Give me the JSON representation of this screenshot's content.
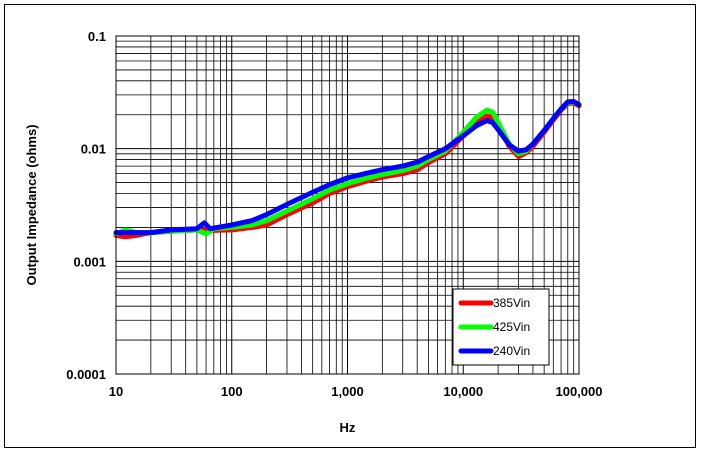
{
  "chart_data": {
    "type": "line",
    "title": "",
    "xlabel": "Hz",
    "ylabel": "Output Impedance (ohms)",
    "x_scale": "log",
    "y_scale": "log",
    "xlim": [
      10,
      100000
    ],
    "ylim": [
      0.0001,
      0.1
    ],
    "grid": true,
    "legend_position": "bottom-right",
    "x_ticks": [
      {
        "value": 10,
        "label": "10"
      },
      {
        "value": 100,
        "label": "100"
      },
      {
        "value": 1000,
        "label": "1,000"
      },
      {
        "value": 10000,
        "label": "10,000"
      },
      {
        "value": 100000,
        "label": "100,000"
      }
    ],
    "y_ticks": [
      {
        "value": 0.1,
        "label": "0.1"
      },
      {
        "value": 0.01,
        "label": "0.01"
      },
      {
        "value": 0.001,
        "label": "0.001"
      },
      {
        "value": 0.0001,
        "label": "0.0001"
      }
    ],
    "series": [
      {
        "name": "385Vin",
        "color": "#ff0000",
        "points": [
          [
            10,
            0.0017
          ],
          [
            12,
            0.00165
          ],
          [
            15,
            0.0017
          ],
          [
            20,
            0.0018
          ],
          [
            30,
            0.00185
          ],
          [
            50,
            0.0019
          ],
          [
            60,
            0.0019
          ],
          [
            70,
            0.00188
          ],
          [
            100,
            0.0019
          ],
          [
            150,
            0.002
          ],
          [
            200,
            0.0021
          ],
          [
            300,
            0.0026
          ],
          [
            500,
            0.0033
          ],
          [
            700,
            0.004
          ],
          [
            1000,
            0.0046
          ],
          [
            1500,
            0.0052
          ],
          [
            2000,
            0.0056
          ],
          [
            3000,
            0.006
          ],
          [
            4000,
            0.0065
          ],
          [
            5000,
            0.0075
          ],
          [
            7000,
            0.009
          ],
          [
            10000,
            0.013
          ],
          [
            13000,
            0.017
          ],
          [
            16000,
            0.0195
          ],
          [
            18000,
            0.019
          ],
          [
            20000,
            0.016
          ],
          [
            25000,
            0.0105
          ],
          [
            30000,
            0.0085
          ],
          [
            35000,
            0.0092
          ],
          [
            40000,
            0.0105
          ],
          [
            50000,
            0.014
          ],
          [
            60000,
            0.018
          ],
          [
            70000,
            0.022
          ],
          [
            80000,
            0.025
          ],
          [
            90000,
            0.0255
          ],
          [
            100000,
            0.024
          ]
        ]
      },
      {
        "name": "425Vin",
        "color": "#00ff00",
        "points": [
          [
            10,
            0.00175
          ],
          [
            12,
            0.0019
          ],
          [
            15,
            0.0018
          ],
          [
            20,
            0.0018
          ],
          [
            30,
            0.00185
          ],
          [
            50,
            0.0019
          ],
          [
            60,
            0.00175
          ],
          [
            70,
            0.00195
          ],
          [
            100,
            0.002
          ],
          [
            150,
            0.0021
          ],
          [
            200,
            0.0023
          ],
          [
            300,
            0.0028
          ],
          [
            500,
            0.0036
          ],
          [
            700,
            0.0043
          ],
          [
            1000,
            0.0049
          ],
          [
            1500,
            0.0055
          ],
          [
            2000,
            0.0059
          ],
          [
            3000,
            0.0064
          ],
          [
            4000,
            0.007
          ],
          [
            5000,
            0.008
          ],
          [
            7000,
            0.0095
          ],
          [
            10000,
            0.014
          ],
          [
            13000,
            0.019
          ],
          [
            16000,
            0.022
          ],
          [
            18000,
            0.021
          ],
          [
            20000,
            0.017
          ],
          [
            25000,
            0.011
          ],
          [
            30000,
            0.009
          ],
          [
            35000,
            0.0095
          ],
          [
            40000,
            0.011
          ],
          [
            50000,
            0.0145
          ],
          [
            60000,
            0.0185
          ],
          [
            70000,
            0.0225
          ],
          [
            80000,
            0.0255
          ],
          [
            90000,
            0.026
          ],
          [
            100000,
            0.0245
          ]
        ]
      },
      {
        "name": "240Vin",
        "color": "#0000ff",
        "points": [
          [
            10,
            0.0018
          ],
          [
            12,
            0.0018
          ],
          [
            15,
            0.0018
          ],
          [
            20,
            0.0018
          ],
          [
            30,
            0.0019
          ],
          [
            50,
            0.00195
          ],
          [
            58,
            0.0022
          ],
          [
            65,
            0.00195
          ],
          [
            100,
            0.0021
          ],
          [
            150,
            0.0023
          ],
          [
            200,
            0.0026
          ],
          [
            300,
            0.0032
          ],
          [
            500,
            0.0041
          ],
          [
            700,
            0.0048
          ],
          [
            1000,
            0.0055
          ],
          [
            1500,
            0.0061
          ],
          [
            2000,
            0.0065
          ],
          [
            3000,
            0.007
          ],
          [
            4000,
            0.0076
          ],
          [
            5000,
            0.0085
          ],
          [
            7000,
            0.01
          ],
          [
            10000,
            0.013
          ],
          [
            13000,
            0.016
          ],
          [
            16000,
            0.0178
          ],
          [
            18000,
            0.017
          ],
          [
            20000,
            0.0148
          ],
          [
            25000,
            0.0108
          ],
          [
            30000,
            0.0095
          ],
          [
            35000,
            0.0098
          ],
          [
            40000,
            0.011
          ],
          [
            50000,
            0.0145
          ],
          [
            60000,
            0.0185
          ],
          [
            70000,
            0.0225
          ],
          [
            80000,
            0.026
          ],
          [
            90000,
            0.0262
          ],
          [
            100000,
            0.0245
          ]
        ]
      }
    ]
  }
}
